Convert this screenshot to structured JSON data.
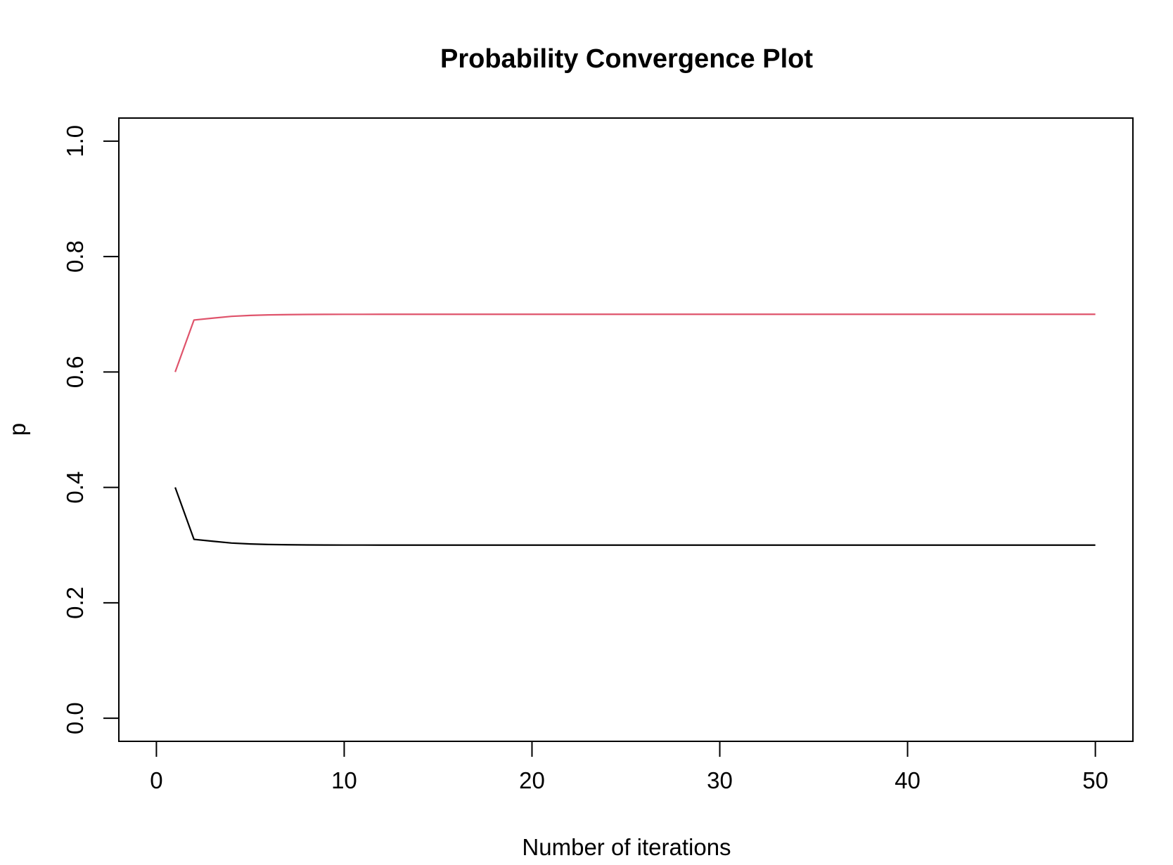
{
  "chart_data": {
    "type": "line",
    "title": "Probability Convergence Plot",
    "xlabel": "Number of iterations",
    "ylabel": "p",
    "xlim": [
      -2,
      52
    ],
    "ylim": [
      -0.04,
      1.04
    ],
    "xticks": [
      0,
      10,
      20,
      30,
      40,
      50
    ],
    "yticks": [
      0.0,
      0.2,
      0.4,
      0.6,
      0.8,
      1.0
    ],
    "xtick_labels": [
      "0",
      "10",
      "20",
      "30",
      "40",
      "50"
    ],
    "ytick_labels": [
      "0.0",
      "0.2",
      "0.4",
      "0.6",
      "0.8",
      "1.0"
    ],
    "grid": false,
    "legend": "none",
    "series": [
      {
        "color": "#000000",
        "x": [
          1,
          2,
          3,
          4,
          5,
          6,
          7,
          8,
          9,
          10,
          11,
          12,
          13,
          14,
          15,
          16,
          17,
          18,
          19,
          20,
          21,
          22,
          23,
          24,
          25,
          26,
          27,
          28,
          29,
          30,
          31,
          32,
          33,
          34,
          35,
          36,
          37,
          38,
          39,
          40,
          41,
          42,
          43,
          44,
          45,
          46,
          47,
          48,
          49,
          50
        ],
        "y": [
          0.4,
          0.31,
          0.3067,
          0.3036,
          0.302,
          0.3011,
          0.3006,
          0.3003,
          0.3002,
          0.3001,
          0.3001,
          0.3,
          0.3,
          0.3,
          0.3,
          0.3,
          0.3,
          0.3,
          0.3,
          0.3,
          0.3,
          0.3,
          0.3,
          0.3,
          0.3,
          0.3,
          0.3,
          0.3,
          0.3,
          0.3,
          0.3,
          0.3,
          0.3,
          0.3,
          0.3,
          0.3,
          0.3,
          0.3,
          0.3,
          0.3,
          0.3,
          0.3,
          0.3,
          0.3,
          0.3,
          0.3,
          0.3,
          0.3,
          0.3,
          0.3
        ]
      },
      {
        "color": "#DF536B",
        "x": [
          1,
          2,
          3,
          4,
          5,
          6,
          7,
          8,
          9,
          10,
          11,
          12,
          13,
          14,
          15,
          16,
          17,
          18,
          19,
          20,
          21,
          22,
          23,
          24,
          25,
          26,
          27,
          28,
          29,
          30,
          31,
          32,
          33,
          34,
          35,
          36,
          37,
          38,
          39,
          40,
          41,
          42,
          43,
          44,
          45,
          46,
          47,
          48,
          49,
          50
        ],
        "y": [
          0.6,
          0.69,
          0.6933,
          0.6964,
          0.698,
          0.6989,
          0.6994,
          0.6997,
          0.6998,
          0.6999,
          0.6999,
          0.7,
          0.7,
          0.7,
          0.7,
          0.7,
          0.7,
          0.7,
          0.7,
          0.7,
          0.7,
          0.7,
          0.7,
          0.7,
          0.7,
          0.7,
          0.7,
          0.7,
          0.7,
          0.7,
          0.7,
          0.7,
          0.7,
          0.7,
          0.7,
          0.7,
          0.7,
          0.7,
          0.7,
          0.7,
          0.7,
          0.7,
          0.7,
          0.7,
          0.7,
          0.7,
          0.7,
          0.7,
          0.7,
          0.7
        ]
      }
    ]
  }
}
